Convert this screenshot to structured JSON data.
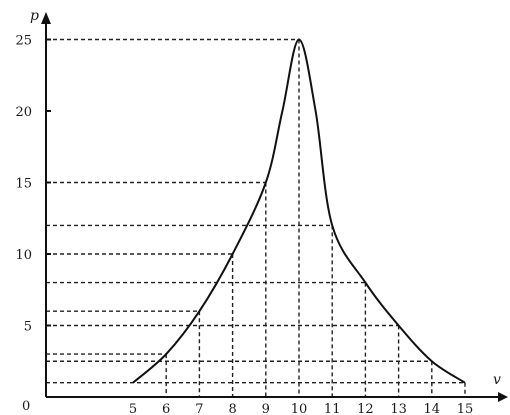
{
  "chart_data": {
    "type": "line",
    "xlabel": "v",
    "ylabel": "p",
    "origin_label": "0",
    "xlim": [
      4.0,
      15.5
    ],
    "ylim": [
      0,
      26
    ],
    "x_ticks": [
      5,
      6,
      7,
      8,
      9,
      10,
      11,
      12,
      13,
      14,
      15
    ],
    "y_ticks": [
      5,
      10,
      15,
      20,
      25
    ],
    "grid": "dashed guide lines from curve points to axes",
    "series": [
      {
        "x": [
          5,
          6,
          7,
          8,
          9,
          9.5,
          10,
          10.5,
          11,
          12,
          13,
          14,
          15
        ],
        "values": [
          1,
          3,
          6,
          10,
          15,
          20,
          25,
          20,
          12,
          8,
          5,
          2.5,
          1
        ]
      }
    ],
    "guide_points": [
      {
        "x": 6,
        "y": 3
      },
      {
        "x": 7,
        "y": 6
      },
      {
        "x": 8,
        "y": 10
      },
      {
        "x": 9,
        "y": 15
      },
      {
        "x": 10,
        "y": 25
      },
      {
        "x": 11,
        "y": 12
      },
      {
        "x": 12,
        "y": 8
      },
      {
        "x": 13,
        "y": 5
      },
      {
        "x": 14,
        "y": 2.5
      },
      {
        "x": 15,
        "y": 1
      }
    ]
  }
}
